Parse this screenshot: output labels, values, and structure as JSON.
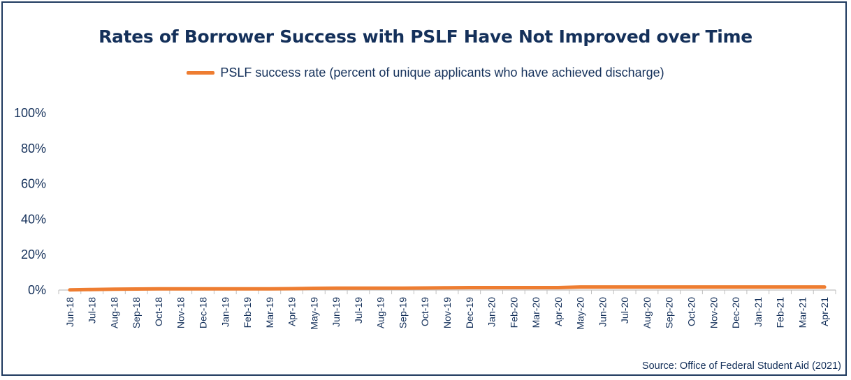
{
  "chart_data": {
    "type": "line",
    "title": "Rates of Borrower Success with PSLF Have Not Improved over Time",
    "xlabel": "",
    "ylabel": "",
    "categories": [
      "Jun-18",
      "Jul-18",
      "Aug-18",
      "Sep-18",
      "Oct-18",
      "Nov-18",
      "Dec-18",
      "Jan-19",
      "Feb-19",
      "Mar-19",
      "Apr-19",
      "May-19",
      "Jun-19",
      "Jul-19",
      "Aug-19",
      "Sep-19",
      "Oct-19",
      "Nov-19",
      "Dec-19",
      "Jan-20",
      "Feb-20",
      "Mar-20",
      "Apr-20",
      "May-20",
      "Jun-20",
      "Jul-20",
      "Aug-20",
      "Sep-20",
      "Oct-20",
      "Nov-20",
      "Dec-20",
      "Jan-21",
      "Feb-21",
      "Mar-21",
      "Apr-21"
    ],
    "series": [
      {
        "name": "PSLF success rate (percent of unique applicants who have achieved discharge)",
        "color": "#ee7d31",
        "values": [
          0.1,
          0.3,
          0.5,
          0.6,
          0.7,
          0.7,
          0.7,
          0.7,
          0.7,
          0.7,
          0.8,
          1.0,
          1.1,
          1.1,
          1.1,
          1.1,
          1.2,
          1.3,
          1.4,
          1.4,
          1.4,
          1.4,
          1.4,
          1.7,
          1.7,
          1.7,
          1.7,
          1.7,
          1.7,
          1.7,
          1.7,
          1.7,
          1.7,
          1.7,
          1.7
        ]
      }
    ],
    "ylim": [
      0,
      100
    ],
    "yticks": [
      "0%",
      "20%",
      "40%",
      "60%",
      "80%",
      "100%"
    ],
    "ytick_values": [
      0,
      20,
      40,
      60,
      80,
      100
    ],
    "grid": false,
    "legend_position": "top",
    "source": "Source: Office of Federal Student Aid (2021)"
  },
  "colors": {
    "text": "#14305a",
    "border": "#1f3a5f",
    "axis": "#bfbfbf"
  }
}
